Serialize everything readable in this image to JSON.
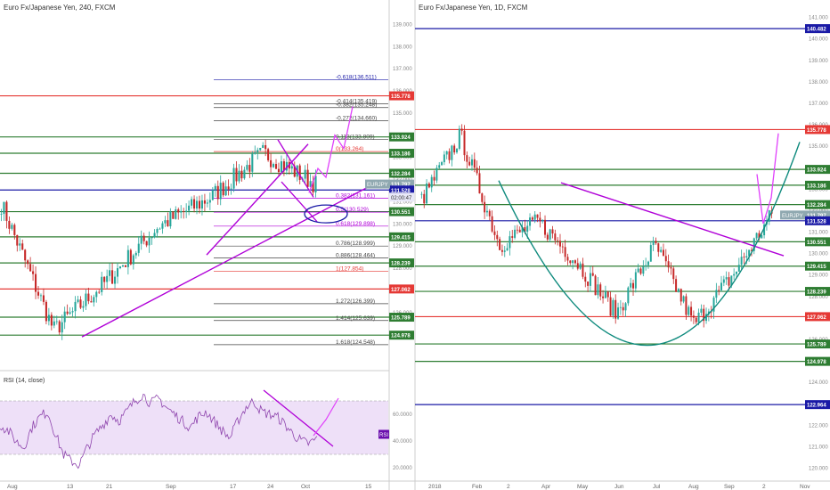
{
  "colors": {
    "green_line": "#2e7d32",
    "red_line": "#e53935",
    "blue_line": "#1a1aa6",
    "purple": "#b000d8",
    "teal": "#0e8a7d",
    "bull": "#26a69a",
    "bear": "#c62828",
    "price_label_bg": "#8fa8b0",
    "rsi_fill": "#eee0f8"
  },
  "panels": {
    "left": {
      "title": "Euro Fx/Japanese Yen, 240, FXCM",
      "symbol_tag": "EURJPY",
      "time_tag": "02:00:47",
      "price_axis": {
        "ticks": [
          "139.000",
          "138.000",
          "137.000",
          "136.000",
          "135.000",
          "134.000",
          "133.000",
          "132.000",
          "131.000",
          "130.000",
          "129.000",
          "128.000",
          "127.000",
          "126.000",
          "125.000"
        ],
        "badges": [
          {
            "label": "135.778",
            "color": "red"
          },
          {
            "label": "133.924",
            "color": "green"
          },
          {
            "label": "133.186",
            "color": "green"
          },
          {
            "label": "132.284",
            "color": "green"
          },
          {
            "label": "131.797",
            "color": "gray"
          },
          {
            "label": "131.528",
            "color": "blue"
          },
          {
            "label": "130.551",
            "color": "green"
          },
          {
            "label": "129.415",
            "color": "green"
          },
          {
            "label": "128.239",
            "color": "green"
          },
          {
            "label": "127.062",
            "color": "red"
          },
          {
            "label": "125.789",
            "color": "green"
          },
          {
            "label": "124.978",
            "color": "green"
          }
        ]
      },
      "time_axis": [
        "Aug",
        "13",
        "21",
        "Sep",
        "17",
        "24",
        "Oct",
        "15"
      ],
      "fib_labels": [
        "-0.618(136.511)",
        "-0.414(135.419)",
        "-0.382(135.248)",
        "-0.272(134.660)",
        "0.113(133.809)",
        "0(133.264)",
        "0.382(131.161)",
        "0.5(130.529)",
        "0.618(129.898)",
        "0.786(128.999)",
        "0.886(128.464)",
        "1(127.854)",
        "1.272(126.399)",
        "1.414(125.639)",
        "1.618(124.548)"
      ],
      "rsi": {
        "title": "RSI (14, close)",
        "tag": "RSI",
        "ticks": [
          "60.0000",
          "40.0000",
          "20.0000"
        ]
      }
    },
    "right": {
      "title": "Euro Fx/Japanese Yen, 1D, FXCM",
      "symbol_tag": "EURJPY",
      "price_axis": {
        "ticks": [
          "141.000",
          "140.000",
          "139.000",
          "138.000",
          "137.000",
          "136.000",
          "135.000",
          "134.000",
          "133.000",
          "132.000",
          "131.000",
          "130.000",
          "129.000",
          "128.000",
          "127.000",
          "126.000",
          "125.000",
          "124.000",
          "123.000",
          "122.000",
          "121.000",
          "120.000"
        ],
        "badges": [
          {
            "label": "140.482",
            "color": "blue"
          },
          {
            "label": "135.778",
            "color": "red"
          },
          {
            "label": "133.924",
            "color": "green"
          },
          {
            "label": "133.186",
            "color": "green"
          },
          {
            "label": "132.284",
            "color": "green"
          },
          {
            "label": "131.797",
            "color": "gray"
          },
          {
            "label": "131.528",
            "color": "blue"
          },
          {
            "label": "130.551",
            "color": "green"
          },
          {
            "label": "129.415",
            "color": "green"
          },
          {
            "label": "128.239",
            "color": "green"
          },
          {
            "label": "127.062",
            "color": "red"
          },
          {
            "label": "125.789",
            "color": "green"
          },
          {
            "label": "124.978",
            "color": "green"
          },
          {
            "label": "122.964",
            "color": "blue"
          }
        ]
      },
      "time_axis": [
        "2018",
        "Feb",
        "2",
        "Apr",
        "May",
        "Jun",
        "Jul",
        "Aug",
        "Sep",
        "2",
        "Nov"
      ]
    }
  },
  "chart_data": [
    {
      "type": "candlestick",
      "title": "Euro Fx/Japanese Yen, 240, FXCM",
      "timeframe": "240",
      "ylim": [
        123.7,
        139.7
      ],
      "last_price": 131.797,
      "horizontal_levels": [
        {
          "price": 135.778,
          "color": "red"
        },
        {
          "price": 133.924,
          "color": "green"
        },
        {
          "price": 133.186,
          "color": "green"
        },
        {
          "price": 132.284,
          "color": "green"
        },
        {
          "price": 131.528,
          "color": "blue"
        },
        {
          "price": 130.551,
          "color": "green"
        },
        {
          "price": 129.415,
          "color": "green"
        },
        {
          "price": 128.239,
          "color": "green"
        },
        {
          "price": 127.062,
          "color": "red"
        },
        {
          "price": 125.789,
          "color": "green"
        },
        {
          "price": 124.978,
          "color": "green"
        }
      ],
      "fibonacci": [
        {
          "ratio": -0.618,
          "price": 136.511
        },
        {
          "ratio": -0.414,
          "price": 135.419
        },
        {
          "ratio": -0.382,
          "price": 135.248
        },
        {
          "ratio": -0.272,
          "price": 134.66
        },
        {
          "ratio": 0.113,
          "price": 133.809
        },
        {
          "ratio": 0,
          "price": 133.264
        },
        {
          "ratio": 0.382,
          "price": 131.161
        },
        {
          "ratio": 0.5,
          "price": 130.529
        },
        {
          "ratio": 0.618,
          "price": 129.898
        },
        {
          "ratio": 0.786,
          "price": 128.999
        },
        {
          "ratio": 0.886,
          "price": 128.464
        },
        {
          "ratio": 1,
          "price": 127.854
        },
        {
          "ratio": 1.272,
          "price": 126.399
        },
        {
          "ratio": 1.414,
          "price": 125.639
        },
        {
          "ratio": 1.618,
          "price": 124.548
        }
      ],
      "close_path": [
        [
          "Aug",
          130.9
        ],
        [
          "13",
          125.2
        ],
        [
          "21",
          127.4
        ],
        [
          "Sep",
          129.9
        ],
        [
          "17",
          131.2
        ],
        [
          "24",
          133.2
        ],
        [
          "Oct",
          131.8
        ]
      ]
    },
    {
      "type": "line",
      "title": "RSI (14, close)",
      "ylim": [
        10,
        90
      ],
      "ticks": [
        60,
        40,
        20
      ],
      "band": [
        30,
        70
      ],
      "values": [
        52,
        48,
        40,
        35,
        50,
        58,
        62,
        45,
        30,
        25,
        22,
        35,
        45,
        52,
        60,
        55,
        62,
        70,
        75,
        68,
        72,
        65,
        60,
        55,
        50,
        58,
        62,
        55,
        48,
        42,
        55,
        65,
        70,
        62,
        60,
        58,
        52,
        45,
        40,
        38,
        42
      ]
    },
    {
      "type": "candlestick",
      "title": "Euro Fx/Japanese Yen, 1D, FXCM",
      "timeframe": "1D",
      "ylim": [
        119.4,
        141.4
      ],
      "last_price": 131.797,
      "horizontal_levels": [
        {
          "price": 140.482,
          "color": "blue"
        },
        {
          "price": 135.778,
          "color": "red"
        },
        {
          "price": 133.924,
          "color": "green"
        },
        {
          "price": 133.186,
          "color": "green"
        },
        {
          "price": 132.284,
          "color": "green"
        },
        {
          "price": 131.528,
          "color": "blue"
        },
        {
          "price": 130.551,
          "color": "green"
        },
        {
          "price": 129.415,
          "color": "green"
        },
        {
          "price": 128.239,
          "color": "green"
        },
        {
          "price": 127.062,
          "color": "red"
        },
        {
          "price": 125.789,
          "color": "green"
        },
        {
          "price": 124.978,
          "color": "green"
        },
        {
          "price": 122.964,
          "color": "blue"
        }
      ],
      "close_path": [
        [
          "2018",
          132.5
        ],
        [
          "Feb",
          135.5
        ],
        [
          "2",
          130.4
        ],
        [
          "Apr",
          131.5
        ],
        [
          "May",
          129.6
        ],
        [
          "Jun",
          127.2
        ],
        [
          "Jul",
          130.4
        ],
        [
          "Aug",
          126.7
        ],
        [
          "Sep",
          129.0
        ],
        [
          "2",
          131.8
        ]
      ]
    }
  ]
}
